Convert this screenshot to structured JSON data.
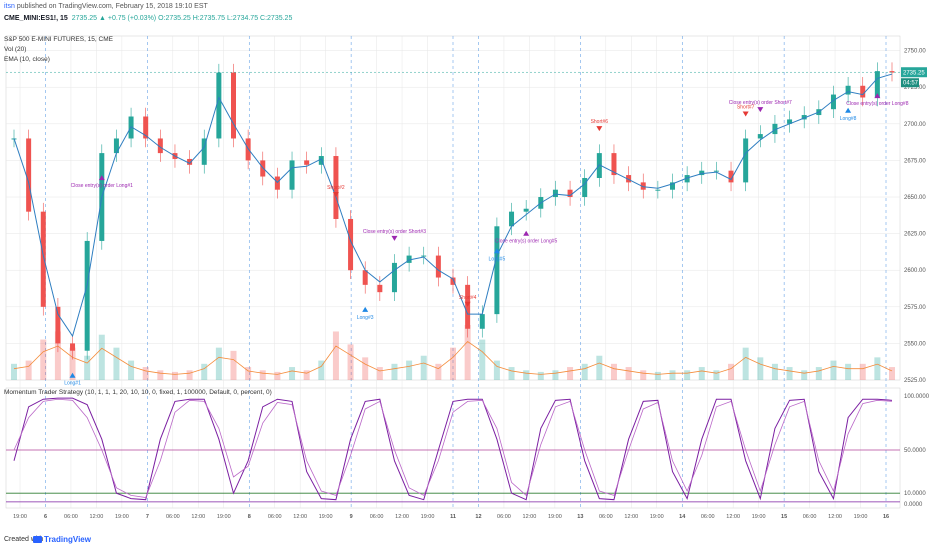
{
  "header": {
    "author": "itsn",
    "published": "published on TradingView.com, February 15, 2018 19:10 EST",
    "symbol": "CME_MINI:ES1!, 15",
    "ohlc": "2735.25 ▲ +0.75 (+0.03%) O:2735.25 H:2735.75 L:2734.75 C:2735.25"
  },
  "legends": {
    "title": "S&P 500 E-MINI FUTURES, 15, CME",
    "vol": "Vol (20)",
    "ema": "EMA (10, close)",
    "strategy": "Momentum Trader Strategy (10, 1, 1, 1, 20, 10, 10, 0, fixed, 1, 100000, Default, 0, percent, 0)"
  },
  "footer": {
    "created": "Created with",
    "brand": "TradingView"
  },
  "colors": {
    "up": "#26a69a",
    "down": "#ef5350",
    "ema": "#2f7ec1",
    "vol_ma": "#f48c3b",
    "stoch": "#7b1fa2",
    "stoch_light": "#ba68c8",
    "grid": "#e6e6e6",
    "divider": "#4a90e2",
    "mid_line": "#b0459a",
    "low_line": "#2e7d32"
  },
  "chart_data": [
    {
      "type": "line",
      "subtype": "candlestick",
      "title": "S&P 500 E-MINI FUTURES, 15, CME",
      "interval_minutes": 15,
      "price_ylim": [
        2525,
        2760
      ],
      "price_ticks": [
        2525,
        2550,
        2575,
        2600,
        2625,
        2650,
        2675,
        2700,
        2725,
        2750
      ],
      "last_price": 2735.25,
      "last_price_label": "2735.25",
      "countdown_label": "04:57",
      "x_tick_labels": [
        "19:00",
        "6",
        "06:00",
        "12:00",
        "19:00",
        "7",
        "06:00",
        "12:00",
        "19:00",
        "8",
        "06:00",
        "12:00",
        "19:00",
        "9",
        "06:00",
        "12:00",
        "19:00",
        "11",
        "12",
        "06:00",
        "12:00",
        "19:00",
        "13",
        "06:00",
        "12:00",
        "19:00",
        "14",
        "06:00",
        "12:00",
        "19:00",
        "15",
        "06:00",
        "12:00",
        "19:00",
        "16"
      ],
      "series": [
        {
          "name": "close",
          "values": [
            2690,
            2640,
            2575,
            2550,
            2545,
            2620,
            2680,
            2690,
            2705,
            2690,
            2680,
            2676,
            2672,
            2690,
            2735,
            2690,
            2675,
            2664,
            2655,
            2675,
            2672,
            2678,
            2635,
            2600,
            2590,
            2585,
            2605,
            2610,
            2610,
            2595,
            2590,
            2560,
            2570,
            2630,
            2640,
            2642,
            2650,
            2655,
            2650,
            2663,
            2680,
            2665,
            2660,
            2655,
            2655,
            2660,
            2665,
            2668,
            2668,
            2660,
            2690,
            2693,
            2700,
            2703,
            2706,
            2710,
            2720,
            2726,
            2718,
            2736,
            2735
          ]
        },
        {
          "name": "EMA (10, close)",
          "values": [
            2690,
            2660,
            2610,
            2570,
            2555,
            2590,
            2650,
            2680,
            2698,
            2692,
            2684,
            2678,
            2673,
            2684,
            2718,
            2700,
            2683,
            2670,
            2660,
            2670,
            2671,
            2676,
            2650,
            2620,
            2600,
            2592,
            2600,
            2607,
            2609,
            2600,
            2594,
            2570,
            2570,
            2610,
            2630,
            2638,
            2646,
            2652,
            2651,
            2659,
            2672,
            2667,
            2662,
            2657,
            2656,
            2659,
            2663,
            2666,
            2667,
            2662,
            2680,
            2689,
            2696,
            2700,
            2704,
            2708,
            2716,
            2722,
            2720,
            2731,
            2734
          ]
        }
      ],
      "volume": {
        "name": "Vol (20)",
        "level": [
          10,
          12,
          25,
          30,
          20,
          15,
          28,
          20,
          12,
          8,
          6,
          5,
          6,
          10,
          20,
          18,
          8,
          6,
          5,
          8,
          6,
          12,
          30,
          22,
          14,
          8,
          10,
          12,
          15,
          10,
          20,
          34,
          25,
          12,
          8,
          6,
          5,
          6,
          8,
          10,
          15,
          10,
          8,
          6,
          5,
          6,
          6,
          8,
          6,
          10,
          20,
          14,
          10,
          8,
          6,
          8,
          12,
          10,
          10,
          14,
          8
        ]
      },
      "trades": [
        {
          "text": "Long#1",
          "side": "long",
          "bar": 4
        },
        {
          "text": "Close entry(s) order Long#1",
          "side": "long",
          "bar": 6
        },
        {
          "text": "Short#2",
          "side": "short",
          "bar": 22
        },
        {
          "text": "Long#3",
          "side": "long",
          "bar": 24
        },
        {
          "text": "Close entry(s) order Short#3",
          "side": "short",
          "bar": 26
        },
        {
          "text": "Short#4",
          "side": "short",
          "bar": 31
        },
        {
          "text": "Long#5",
          "side": "long",
          "bar": 33
        },
        {
          "text": "Close entry(s) order Long#5",
          "side": "long",
          "bar": 35
        },
        {
          "text": "Short#6",
          "side": "short",
          "bar": 40
        },
        {
          "text": "Short#7",
          "side": "short",
          "bar": 50
        },
        {
          "text": "Close entry(s) order Short#7",
          "side": "short",
          "bar": 51
        },
        {
          "text": "Long#8",
          "side": "long",
          "bar": 57
        },
        {
          "text": "Close entry(s) order Long#8",
          "side": "long",
          "bar": 59
        }
      ]
    },
    {
      "type": "line",
      "title": "Momentum Trader Strategy",
      "ylim": [
        0,
        100
      ],
      "y_ticks": [
        0,
        10,
        50,
        100
      ],
      "y_tick_labels": [
        "0.0000",
        "10.0000",
        "50.0000",
        "100.0000"
      ],
      "levels": [
        50,
        10,
        2
      ],
      "series": [
        {
          "name": "%K",
          "values": [
            40,
            90,
            97,
            98,
            98,
            92,
            60,
            10,
            5,
            4,
            60,
            95,
            97,
            97,
            60,
            10,
            40,
            90,
            97,
            95,
            30,
            5,
            4,
            60,
            95,
            97,
            40,
            8,
            4,
            50,
            95,
            97,
            97,
            60,
            10,
            4,
            70,
            96,
            97,
            40,
            5,
            4,
            60,
            95,
            96,
            30,
            5,
            60,
            97,
            97,
            40,
            5,
            70,
            96,
            97,
            30,
            5,
            80,
            97,
            97,
            96
          ]
        },
        {
          "name": "%D",
          "values": [
            50,
            80,
            95,
            97,
            96,
            80,
            50,
            15,
            8,
            6,
            40,
            85,
            96,
            95,
            70,
            25,
            35,
            75,
            94,
            92,
            40,
            12,
            8,
            45,
            88,
            95,
            50,
            15,
            8,
            40,
            85,
            95,
            96,
            70,
            20,
            8,
            55,
            90,
            95,
            50,
            12,
            8,
            50,
            88,
            94,
            40,
            12,
            45,
            90,
            95,
            50,
            12,
            55,
            90,
            95,
            40,
            12,
            65,
            93,
            96,
            95
          ]
        }
      ]
    }
  ]
}
